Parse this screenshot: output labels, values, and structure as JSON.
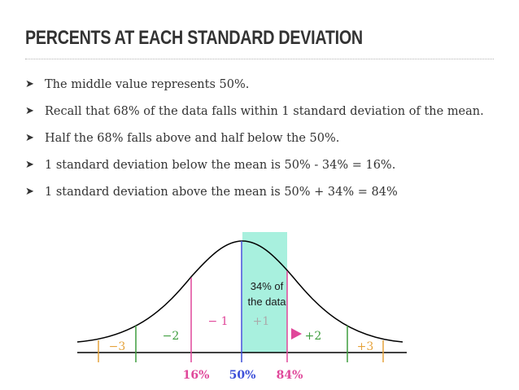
{
  "slide": {
    "title": "PERCENTS AT EACH STANDARD DEVIATION",
    "bullets": [
      "The middle value represents 50%.",
      "Recall that 68% of the data falls within 1 standard deviation of the mean.",
      "Half the 68% falls above and half below the 50%.",
      "1 standard deviation below the mean is 50% - 34% = 16%.",
      "1 standard deviation above the mean is 50% + 34% = 84%"
    ],
    "bullet_icon": "arrowhead-icon"
  },
  "diagram": {
    "shaded_label_line1": "34% of",
    "shaded_label_line2": "the data",
    "sd_labels": {
      "minus3": "−3",
      "minus2": "−2",
      "minus1": "− 1",
      "plus1": "+1",
      "plus2": "+2",
      "plus3": "+3"
    },
    "percent_labels": {
      "p16": "16%",
      "p50": "50%",
      "p84": "84%"
    },
    "colors": {
      "shaded": "#a8f0de",
      "sd1": "#e0479a",
      "sd2": "#3e9e3e",
      "sd3": "#e6a33c",
      "mean": "#3c4fd8",
      "faint": "#aaaaaa"
    }
  }
}
